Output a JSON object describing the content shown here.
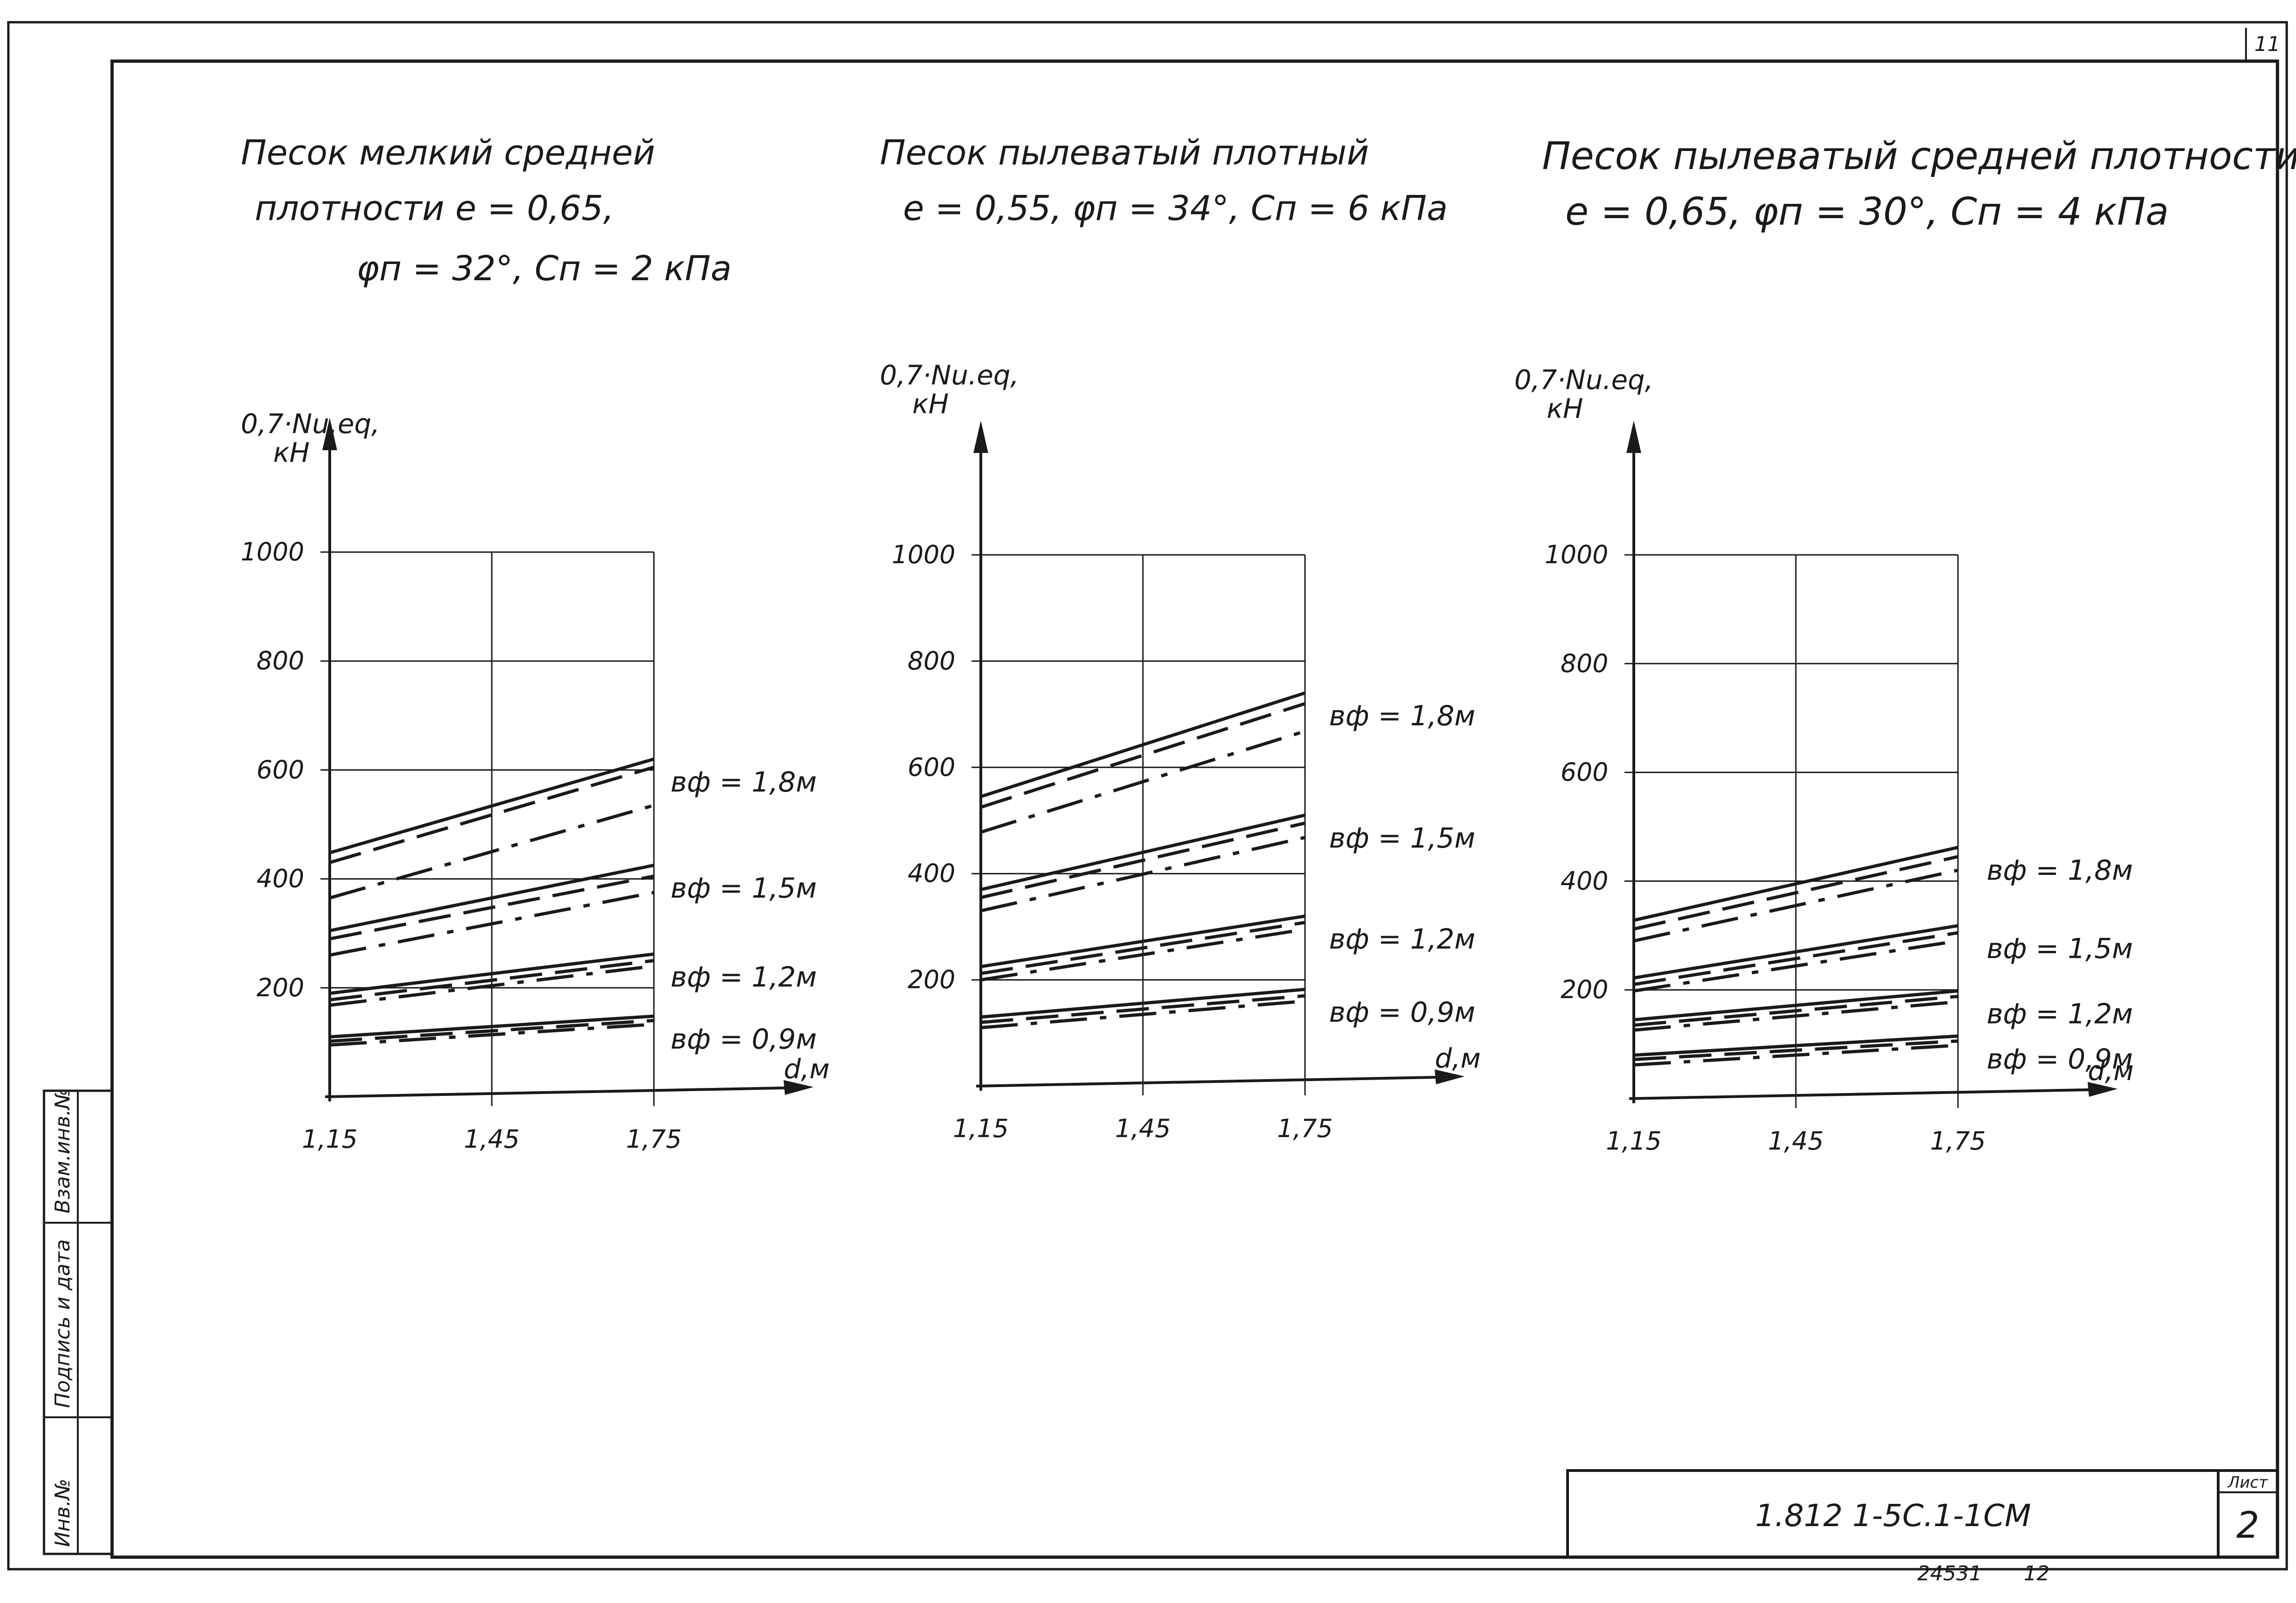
{
  "sheet": {
    "corner_number": "11",
    "stamp_code": "1.812 1-5С.1-1СМ",
    "sheet_label": "Лист",
    "sheet_number": "2",
    "archive_number": "24531",
    "archive_sub": "12",
    "side_labels": [
      "Взам.инв.№",
      "Подпись и дата",
      "Инв.№"
    ]
  },
  "chart_data": [
    {
      "type": "line",
      "title_lines": [
        "Песок мелкий средней",
        "плотности  e = 0,65,",
        "φп = 32°,  Сп = 2 кПа"
      ],
      "ylabel_lines": [
        "0,7·Nu.eq,",
        "кН"
      ],
      "xlabel": "d,м",
      "x": [
        1.15,
        1.75
      ],
      "xticks": [
        "1,15",
        "1,45",
        "1,75"
      ],
      "yticks": [
        "200",
        "400",
        "600",
        "800",
        "1000"
      ],
      "xlim": [
        1.15,
        1.75
      ],
      "ylim": [
        0,
        1000
      ],
      "groups": [
        {
          "label": "вф = 1,8м",
          "series": [
            {
              "style": "solid",
              "values": [
                448,
                620
              ]
            },
            {
              "style": "dashed",
              "values": [
                430,
                605
              ]
            },
            {
              "style": "dashdot",
              "values": [
                365,
                535
              ]
            }
          ]
        },
        {
          "label": "вф = 1,5м",
          "series": [
            {
              "style": "solid",
              "values": [
                305,
                425
              ]
            },
            {
              "style": "dashed",
              "values": [
                290,
                405
              ]
            },
            {
              "style": "dashdot",
              "values": [
                260,
                375
              ]
            }
          ]
        },
        {
          "label": "вф = 1,2м",
          "series": [
            {
              "style": "solid",
              "values": [
                190,
                262
              ]
            },
            {
              "style": "dashed",
              "values": [
                178,
                250
              ]
            },
            {
              "style": "dashdot",
              "values": [
                168,
                240
              ]
            }
          ]
        },
        {
          "label": "вф = 0,9м",
          "series": [
            {
              "style": "solid",
              "values": [
                110,
                148
              ]
            },
            {
              "style": "dashed",
              "values": [
                102,
                140
              ]
            },
            {
              "style": "dashdot",
              "values": [
                95,
                133
              ]
            }
          ]
        }
      ]
    },
    {
      "type": "line",
      "title_lines": [
        "Песок пылеватый плотный",
        "e = 0,55,  φп = 34°,  Сп = 6 кПа"
      ],
      "ylabel_lines": [
        "0,7·Nu.eq,",
        "кН"
      ],
      "xlabel": "d,м",
      "x": [
        1.15,
        1.75
      ],
      "xticks": [
        "1,15",
        "1,45",
        "1,75"
      ],
      "yticks": [
        "200",
        "400",
        "600",
        "800",
        "1000"
      ],
      "xlim": [
        1.15,
        1.75
      ],
      "ylim": [
        0,
        1000
      ],
      "groups": [
        {
          "label": "вф = 1,8м",
          "series": [
            {
              "style": "solid",
              "values": [
                545,
                740
              ]
            },
            {
              "style": "dashed",
              "values": [
                525,
                720
              ]
            },
            {
              "style": "dashdot",
              "values": [
                478,
                668
              ]
            }
          ]
        },
        {
          "label": "вф = 1,5м",
          "series": [
            {
              "style": "solid",
              "values": [
                370,
                510
              ]
            },
            {
              "style": "dashed",
              "values": [
                355,
                495
              ]
            },
            {
              "style": "dashdot",
              "values": [
                330,
                468
              ]
            }
          ]
        },
        {
          "label": "вф = 1,2м",
          "series": [
            {
              "style": "solid",
              "values": [
                225,
                320
              ]
            },
            {
              "style": "dashed",
              "values": [
                212,
                308
              ]
            },
            {
              "style": "dashdot",
              "values": [
                200,
                295
              ]
            }
          ]
        },
        {
          "label": "вф = 0,9м",
          "series": [
            {
              "style": "solid",
              "values": [
                130,
                182
              ]
            },
            {
              "style": "dashed",
              "values": [
                120,
                170
              ]
            },
            {
              "style": "dashdot",
              "values": [
                110,
                160
              ]
            }
          ]
        }
      ]
    },
    {
      "type": "line",
      "title_lines": [
        "Песок пылеватый средней плотности",
        "e = 0,65,   φп = 30°,   Сп = 4 кПа"
      ],
      "ylabel_lines": [
        "0,7·Nu.eq,",
        "кН"
      ],
      "xlabel": "d,м",
      "x": [
        1.15,
        1.75
      ],
      "xticks": [
        "1,15",
        "1,45",
        "1,75"
      ],
      "yticks": [
        "200",
        "400",
        "600",
        "800",
        "1000"
      ],
      "xlim": [
        1.15,
        1.75
      ],
      "ylim": [
        0,
        1000
      ],
      "groups": [
        {
          "label": "вф = 1,8м",
          "series": [
            {
              "style": "solid",
              "values": [
                328,
                462
              ]
            },
            {
              "style": "dashed",
              "values": [
                312,
                445
              ]
            },
            {
              "style": "dashdot",
              "values": [
                290,
                420
              ]
            }
          ]
        },
        {
          "label": "вф = 1,5м",
          "series": [
            {
              "style": "solid",
              "values": [
                222,
                318
              ]
            },
            {
              "style": "dashed",
              "values": [
                210,
                305
              ]
            },
            {
              "style": "dashdot",
              "values": [
                198,
                290
              ]
            }
          ]
        },
        {
          "label": "вф = 1,2м",
          "series": [
            {
              "style": "solid",
              "values": [
                145,
                198
              ]
            },
            {
              "style": "dashed",
              "values": [
                135,
                188
              ]
            },
            {
              "style": "dashdot",
              "values": [
                126,
                178
              ]
            }
          ]
        },
        {
          "label": "вф = 0,9м",
          "series": [
            {
              "style": "solid",
              "values": [
                80,
                115
              ]
            },
            {
              "style": "dashed",
              "values": [
                72,
                106
              ]
            },
            {
              "style": "dashdot",
              "values": [
                62,
                98
              ]
            }
          ]
        }
      ]
    }
  ]
}
